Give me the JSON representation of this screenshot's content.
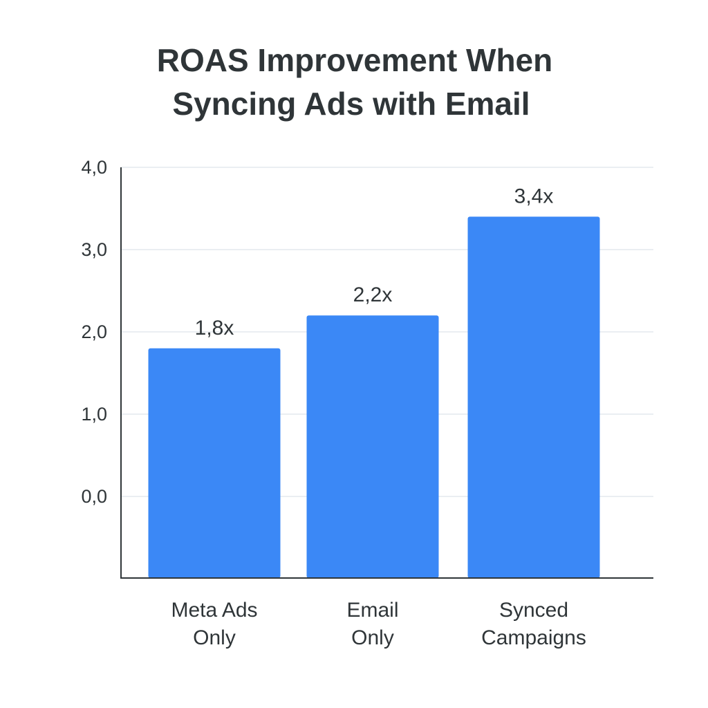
{
  "chart_data": {
    "type": "bar",
    "title_lines": [
      "ROAS Improvement When",
      "Syncing Ads with Email"
    ],
    "categories": [
      [
        "Meta Ads",
        "Only"
      ],
      [
        "Email",
        "Only"
      ],
      [
        "Synced",
        "Campaigns"
      ]
    ],
    "values": [
      1.8,
      2.2,
      3.4
    ],
    "data_labels": [
      "1,8x",
      "2,2x",
      "3,4x"
    ],
    "yticks": [
      {
        "value": 0,
        "label": "0,0"
      },
      {
        "value": 1,
        "label": "1,0"
      },
      {
        "value": 2,
        "label": "2,0"
      },
      {
        "value": 3,
        "label": "3,0"
      },
      {
        "value": 4,
        "label": "4,0"
      }
    ],
    "ylim": [
      0,
      4
    ],
    "xlabel": "",
    "ylabel": "",
    "grid": true,
    "legend": "none",
    "colors": {
      "bar": "#3b88f6",
      "grid": "#d6dee6",
      "axis": "#2f3538",
      "text": "#2f3538"
    }
  }
}
